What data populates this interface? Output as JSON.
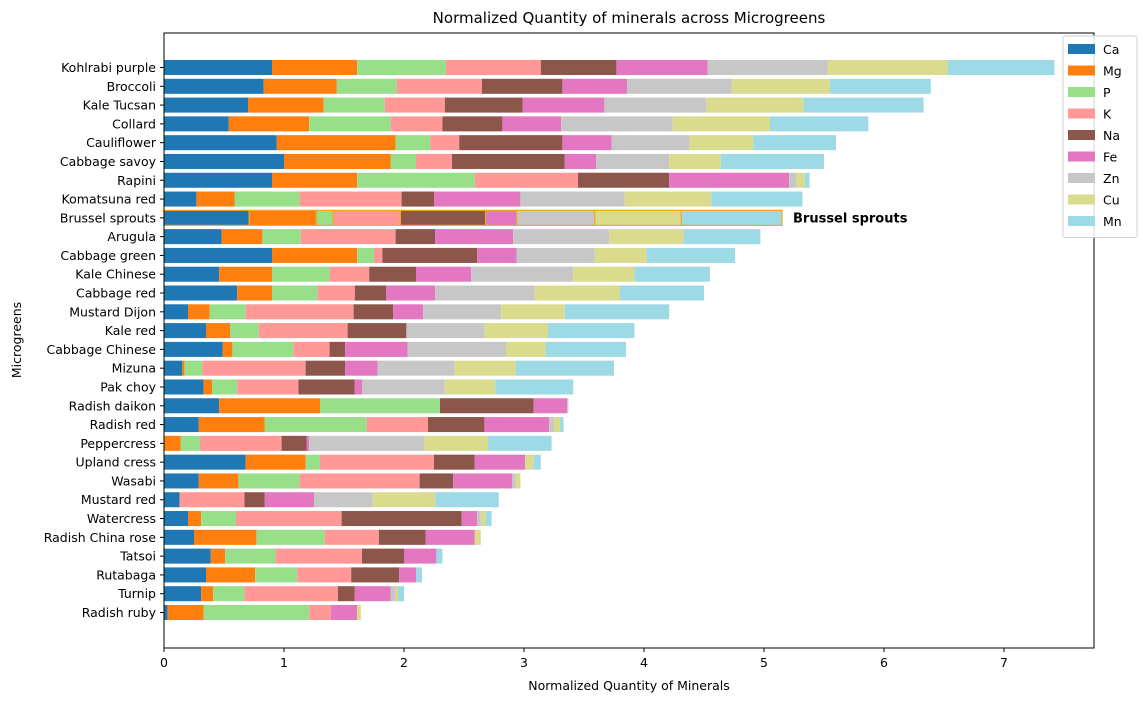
{
  "chart_data": {
    "type": "bar",
    "orientation": "horizontal",
    "stacked": true,
    "title": "Normalized Quantity of minerals across Microgreens",
    "xlabel": "Normalized Quantity of Minerals",
    "ylabel": "Microgreens",
    "xlim": [
      0,
      7.75
    ],
    "xticks": [
      0,
      1,
      2,
      3,
      4,
      5,
      6,
      7
    ],
    "grid": false,
    "legend_position": "top-right",
    "highlight": {
      "category": "Brussel sprouts",
      "annotation": "Brussel sprouts",
      "edge_color": "#f5a623"
    },
    "categories": [
      "Kohlrabi purple",
      "Broccoli",
      "Kale Tucsan",
      "Collard",
      "Cauliflower",
      "Cabbage savoy",
      "Rapini",
      "Komatsuna red",
      "Brussel sprouts",
      "Arugula",
      "Cabbage green",
      "Kale Chinese",
      "Cabbage red",
      "Mustard Dijon",
      "Kale red",
      "Cabbage Chinese",
      "Mizuna",
      "Pak choy",
      "Radish daikon",
      "Radish red",
      "Peppercress",
      "Upland cress",
      "Wasabi",
      "Mustard red",
      "Watercress",
      "Radish China rose",
      "Tatsoi",
      "Rutabaga",
      "Turnip",
      "Radish ruby"
    ],
    "series": [
      {
        "name": "Ca",
        "color": "#1f77b4",
        "values": [
          0.9,
          0.83,
          0.7,
          0.54,
          0.94,
          1.0,
          0.9,
          0.27,
          0.71,
          0.48,
          0.9,
          0.46,
          0.61,
          0.2,
          0.35,
          0.49,
          0.15,
          0.33,
          0.46,
          0.29,
          0.0,
          0.68,
          0.29,
          0.13,
          0.2,
          0.25,
          0.39,
          0.35,
          0.31,
          0.03
        ]
      },
      {
        "name": "Mg",
        "color": "#ff7f0e",
        "values": [
          0.71,
          0.61,
          0.63,
          0.67,
          0.99,
          0.89,
          0.71,
          0.32,
          0.56,
          0.34,
          0.71,
          0.44,
          0.29,
          0.18,
          0.2,
          0.08,
          0.02,
          0.07,
          0.84,
          0.55,
          0.14,
          0.5,
          0.33,
          0.0,
          0.11,
          0.52,
          0.12,
          0.41,
          0.1,
          0.3
        ]
      },
      {
        "name": "P",
        "color": "#98df8a",
        "values": [
          0.74,
          0.5,
          0.51,
          0.68,
          0.29,
          0.21,
          0.98,
          0.54,
          0.14,
          0.32,
          0.14,
          0.48,
          0.38,
          0.3,
          0.24,
          0.51,
          0.15,
          0.21,
          1.0,
          0.85,
          0.16,
          0.12,
          0.51,
          0.0,
          0.29,
          0.57,
          0.42,
          0.35,
          0.26,
          0.88
        ]
      },
      {
        "name": "K",
        "color": "#ff9896",
        "values": [
          0.79,
          0.71,
          0.5,
          0.43,
          0.24,
          0.3,
          0.86,
          0.85,
          0.56,
          0.79,
          0.07,
          0.33,
          0.31,
          0.9,
          0.74,
          0.3,
          0.86,
          0.51,
          0.0,
          0.51,
          0.68,
          0.95,
          1.0,
          0.54,
          0.88,
          0.45,
          0.72,
          0.45,
          0.78,
          0.18
        ]
      },
      {
        "name": "Na",
        "color": "#8c564b",
        "values": [
          0.63,
          0.67,
          0.65,
          0.5,
          0.86,
          0.94,
          0.76,
          0.27,
          0.71,
          0.33,
          0.79,
          0.39,
          0.26,
          0.33,
          0.49,
          0.13,
          0.33,
          0.47,
          0.78,
          0.47,
          0.21,
          0.34,
          0.28,
          0.17,
          1.0,
          0.39,
          0.35,
          0.4,
          0.14,
          0.0
        ]
      },
      {
        "name": "Fe",
        "color": "#e377c2",
        "values": [
          0.76,
          0.54,
          0.68,
          0.49,
          0.41,
          0.26,
          1.0,
          0.72,
          0.26,
          0.65,
          0.33,
          0.46,
          0.41,
          0.25,
          0.0,
          0.52,
          0.27,
          0.06,
          0.28,
          0.54,
          0.02,
          0.42,
          0.49,
          0.41,
          0.13,
          0.41,
          0.27,
          0.14,
          0.3,
          0.22
        ]
      },
      {
        "name": "Zn",
        "color": "#c7c7c7",
        "values": [
          1.0,
          0.87,
          0.85,
          0.93,
          0.65,
          0.61,
          0.06,
          0.87,
          0.65,
          0.8,
          0.65,
          0.85,
          0.83,
          0.65,
          0.65,
          0.82,
          0.64,
          0.69,
          0.01,
          0.04,
          0.96,
          0.0,
          0.03,
          0.49,
          0.03,
          0.0,
          0.0,
          0.0,
          0.04,
          0.0
        ]
      },
      {
        "name": "Cu",
        "color": "#dbdb8d",
        "values": [
          1.0,
          0.82,
          0.81,
          0.81,
          0.53,
          0.43,
          0.07,
          0.72,
          0.72,
          0.62,
          0.43,
          0.51,
          0.71,
          0.53,
          0.53,
          0.33,
          0.51,
          0.42,
          0.0,
          0.05,
          0.53,
          0.07,
          0.04,
          0.52,
          0.04,
          0.05,
          0.0,
          0.0,
          0.02,
          0.03
        ]
      },
      {
        "name": "Mn",
        "color": "#9edae5",
        "values": [
          0.89,
          0.84,
          1.0,
          0.82,
          0.69,
          0.86,
          0.04,
          0.76,
          0.84,
          0.64,
          0.74,
          0.63,
          0.7,
          0.87,
          0.72,
          0.67,
          0.82,
          0.65,
          0.0,
          0.03,
          0.53,
          0.06,
          0.0,
          0.53,
          0.05,
          0.0,
          0.05,
          0.05,
          0.05,
          0.0
        ]
      }
    ]
  }
}
